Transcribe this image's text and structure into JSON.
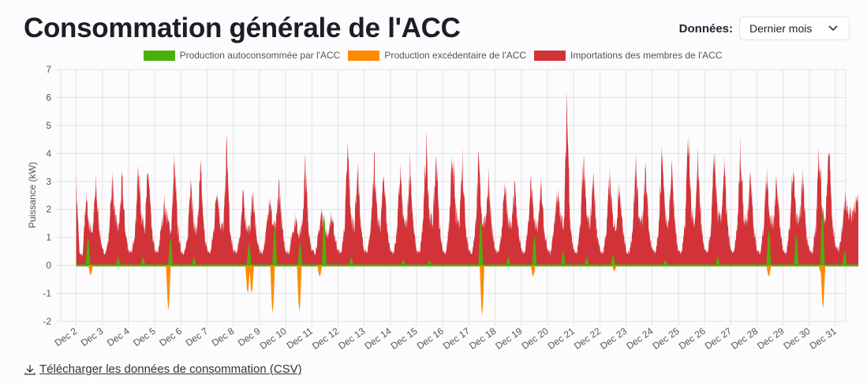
{
  "title": "Consommation générale de l'ACC",
  "data_selector": {
    "label": "Données:",
    "value": "Dernier mois"
  },
  "download_link": "Télécharger les données de consommation (CSV)",
  "chart_data": {
    "type": "area",
    "ylabel": "Puissance (kW)",
    "xlabel": "",
    "ylim": [
      -2,
      7
    ],
    "yticks": [
      7,
      6,
      5,
      4,
      3,
      2,
      1,
      0,
      -1,
      -2
    ],
    "grid": true,
    "legend_position": "top-center",
    "xtick_labels": [
      "Dec 2",
      "Dec 3",
      "Dec 4",
      "Dec 5",
      "Dec 6",
      "Dec 7",
      "Dec 8",
      "Dec 9",
      "Dec 10",
      "Dec 11",
      "Dec 12",
      "Dec 13",
      "Dec 14",
      "Dec 15",
      "Dec 16",
      "Dec 17",
      "Dec 18",
      "Dec 19",
      "Dec 20",
      "Dec 21",
      "Dec 22",
      "Dec 23",
      "Dec 24",
      "Dec 25",
      "Dec 26",
      "Dec 27",
      "Dec 28",
      "Dec 29",
      "Dec 30",
      "Dec 31"
    ],
    "x_unit": "day of December, 3-hour steps from Dec 2 00:00",
    "series": [
      {
        "name": "Production autoconsommée par l'ACC",
        "color": "#4caf0a",
        "events": [
          [
            2.45,
            1.0
          ],
          [
            3.6,
            0.3
          ],
          [
            4.55,
            0.3
          ],
          [
            5.6,
            1.0
          ],
          [
            6.5,
            0.3
          ],
          [
            8.6,
            0.8
          ],
          [
            9.58,
            1.4
          ],
          [
            10.55,
            0.8
          ],
          [
            11.47,
            1.8
          ],
          [
            12.5,
            0.3
          ],
          [
            14.5,
            0.2
          ],
          [
            15.5,
            0.2
          ],
          [
            17.45,
            1.6
          ],
          [
            18.5,
            0.3
          ],
          [
            19.5,
            1.1
          ],
          [
            20.6,
            0.5
          ],
          [
            21.5,
            0.3
          ],
          [
            22.5,
            0.4
          ],
          [
            24.5,
            0.2
          ],
          [
            26.5,
            0.3
          ],
          [
            28.45,
            1.3
          ],
          [
            29.5,
            1.1
          ],
          [
            30.5,
            1.9
          ],
          [
            31.35,
            0.5
          ]
        ]
      },
      {
        "name": "Production excédentaire de l'ACC",
        "color": "#ff8c00",
        "events": [
          [
            2.55,
            -0.35
          ],
          [
            5.52,
            -1.6
          ],
          [
            8.55,
            -1.0
          ],
          [
            8.7,
            -1.0
          ],
          [
            9.5,
            -1.7
          ],
          [
            10.52,
            -1.65
          ],
          [
            11.3,
            -0.4
          ],
          [
            17.5,
            -1.8
          ],
          [
            19.45,
            -0.4
          ],
          [
            22.55,
            -0.2
          ],
          [
            28.45,
            -0.4
          ],
          [
            30.45,
            -0.3
          ],
          [
            30.52,
            -1.55
          ]
        ]
      },
      {
        "name": "Importations des membres de l'ACC",
        "color": "#d23338",
        "values": [
          [
            3.4,
            0.5,
            0.4,
            2.8,
            1.6,
            1.4,
            3.2,
            1.6
          ],
          [
            0.6,
            0.5,
            1.2,
            3.6,
            1.8,
            1.5,
            3.4,
            1.4
          ],
          [
            0.6,
            0.5,
            1.5,
            3.9,
            2.0,
            1.6,
            3.9,
            1.5
          ],
          [
            0.6,
            0.5,
            1.6,
            2.5,
            1.8,
            1.4,
            4.1,
            1.6
          ],
          [
            0.6,
            0.5,
            1.0,
            3.8,
            1.5,
            1.5,
            3.8,
            1.5
          ],
          [
            0.6,
            0.5,
            1.4,
            3.3,
            1.7,
            1.5,
            4.8,
            1.3
          ],
          [
            0.6,
            0.5,
            1.2,
            2.8,
            1.6,
            1.4,
            3.0,
            1.2
          ],
          [
            0.6,
            0.5,
            1.3,
            2.9,
            1.7,
            1.5,
            3.3,
            1.4
          ],
          [
            0.6,
            0.5,
            1.3,
            1.9,
            1.3,
            1.5,
            4.0,
            1.5
          ],
          [
            0.6,
            0.5,
            1.2,
            2.2,
            1.3,
            1.3,
            2.0,
            1.2
          ],
          [
            0.6,
            0.5,
            1.6,
            4.6,
            1.9,
            1.6,
            4.0,
            1.5
          ],
          [
            0.6,
            0.5,
            1.5,
            4.5,
            1.8,
            1.6,
            3.8,
            1.5
          ],
          [
            0.6,
            0.5,
            1.4,
            3.8,
            1.8,
            1.6,
            4.2,
            1.6
          ],
          [
            0.6,
            0.5,
            1.8,
            4.9,
            2.0,
            1.8,
            4.5,
            1.6
          ],
          [
            0.6,
            0.5,
            1.7,
            4.6,
            2.0,
            1.7,
            4.3,
            1.6
          ],
          [
            0.6,
            0.5,
            1.6,
            4.1,
            1.9,
            1.7,
            3.6,
            1.5
          ],
          [
            0.6,
            0.5,
            1.4,
            3.4,
            1.7,
            1.6,
            3.2,
            1.5
          ],
          [
            0.6,
            0.5,
            1.4,
            3.3,
            1.7,
            1.6,
            3.2,
            1.4
          ],
          [
            0.6,
            0.5,
            1.6,
            3.0,
            1.9,
            1.7,
            6.4,
            1.6
          ],
          [
            0.6,
            0.5,
            1.5,
            4.4,
            1.9,
            1.7,
            3.6,
            1.5
          ],
          [
            0.6,
            0.5,
            1.4,
            3.6,
            1.8,
            1.6,
            3.4,
            1.5
          ],
          [
            0.6,
            0.5,
            1.5,
            4.2,
            1.9,
            1.7,
            3.8,
            1.5
          ],
          [
            0.6,
            0.5,
            1.6,
            4.7,
            2.0,
            1.8,
            4.0,
            1.6
          ],
          [
            0.6,
            0.5,
            1.7,
            5.5,
            2.1,
            1.8,
            4.2,
            1.6
          ],
          [
            0.6,
            0.5,
            1.6,
            4.6,
            2.0,
            1.8,
            4.0,
            1.6
          ],
          [
            0.6,
            0.5,
            1.6,
            4.6,
            2.0,
            1.8,
            3.8,
            1.6
          ],
          [
            0.6,
            0.5,
            1.5,
            3.9,
            1.9,
            1.7,
            3.6,
            1.5
          ],
          [
            0.6,
            0.5,
            1.5,
            4.0,
            2.0,
            1.7,
            3.6,
            1.5
          ],
          [
            0.6,
            0.5,
            1.6,
            4.9,
            2.1,
            1.9,
            4.9,
            1.8
          ],
          [
            0.8,
            0.6,
            1.5,
            2.7,
            2.2,
            2.0,
            2.6,
            2.4
          ]
        ]
      }
    ]
  }
}
